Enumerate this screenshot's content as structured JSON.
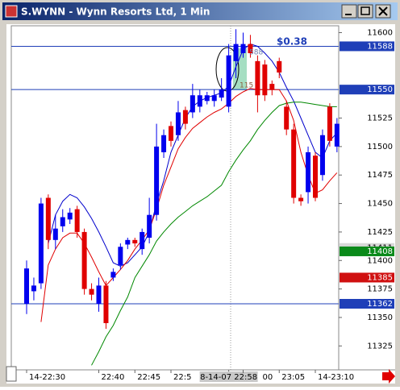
{
  "chart_data": {
    "type": "candlestick",
    "title": "S.WYNN - Wynn Resorts Ltd, 1 Min",
    "categories": [
      "14-22:30",
      null,
      null,
      null,
      null,
      null,
      null,
      null,
      null,
      null,
      "22:40",
      null,
      null,
      null,
      null,
      "22:45",
      null,
      null,
      null,
      null,
      "22:5",
      null,
      null,
      null,
      null,
      null,
      null,
      null,
      "8-14-07 22:58",
      null,
      "00",
      null,
      null,
      null,
      null,
      "23:05",
      null,
      null,
      null,
      null,
      "14-23:10",
      null,
      null,
      null
    ],
    "open": [
      11362,
      11373,
      11380,
      11455,
      11418,
      11430,
      11436,
      11445,
      11425,
      11375,
      11362,
      11378,
      11385,
      11396,
      11414,
      11418,
      11410,
      11420,
      11440,
      11495,
      11518,
      11510,
      11532,
      11530,
      11535,
      11540,
      11540,
      11543,
      11535,
      11575,
      11582,
      11590,
      11575,
      11572,
      11555,
      11575,
      11535,
      11515,
      11455,
      11460,
      11492,
      11475,
      11535,
      11500
    ],
    "high": [
      11400,
      11385,
      11455,
      11458,
      11440,
      11445,
      11446,
      11448,
      11428,
      11380,
      11385,
      11382,
      11393,
      11415,
      11420,
      11420,
      11428,
      11455,
      11520,
      11515,
      11522,
      11540,
      11535,
      11555,
      11550,
      11548,
      11550,
      11560,
      11590,
      11603,
      11600,
      11598,
      11580,
      11576,
      11558,
      11578,
      11540,
      11520,
      11458,
      11500,
      11495,
      11515,
      11538,
      11525
    ],
    "low": [
      11353,
      11365,
      11375,
      11410,
      11410,
      11425,
      11432,
      11420,
      11370,
      11365,
      11355,
      11340,
      11382,
      11392,
      11410,
      11412,
      11405,
      11415,
      11435,
      11490,
      11500,
      11505,
      11515,
      11525,
      11530,
      11537,
      11535,
      11540,
      11530,
      11560,
      11578,
      11578,
      11530,
      11540,
      11545,
      11560,
      11510,
      11450,
      11448,
      11450,
      11452,
      11470,
      11500,
      11495
    ],
    "close": [
      11393,
      11378,
      11450,
      11418,
      11428,
      11438,
      11442,
      11425,
      11375,
      11370,
      11378,
      11345,
      11390,
      11412,
      11418,
      11415,
      11425,
      11440,
      11500,
      11510,
      11505,
      11530,
      11520,
      11545,
      11545,
      11545,
      11545,
      11550,
      11580,
      11590,
      11590,
      11582,
      11545,
      11545,
      11550,
      11565,
      11515,
      11455,
      11452,
      11495,
      11455,
      11510,
      11505,
      11520
    ],
    "up_color": "#0000ee",
    "down_color": "#e00000",
    "series": [
      {
        "color": "#0000cc",
        "values": [
          null,
          null,
          null,
          11415,
          11440,
          11452,
          11458,
          11455,
          11447,
          11437,
          11425,
          11412,
          11398,
          11395,
          11398,
          11405,
          11412,
          11425,
          11450,
          11470,
          11495,
          11510,
          11525,
          11535,
          11540,
          11543,
          11545,
          11547,
          11553,
          11570,
          11585,
          11590,
          11588,
          11582,
          11575,
          11565,
          11552,
          11540,
          11525,
          11510,
          11495,
          11490,
          11505,
          11512
        ]
      },
      {
        "color": "#e00000",
        "values": [
          null,
          null,
          11346,
          11396,
          11410,
          11420,
          11424,
          11424,
          11415,
          11403,
          11390,
          11378,
          11385,
          11392,
          11400,
          11410,
          11418,
          11427,
          11445,
          11466,
          11482,
          11498,
          11508,
          11516,
          11521,
          11526,
          11530,
          11533,
          11538,
          11544,
          11548,
          11551,
          11550,
          11550,
          11550,
          11550,
          11540,
          11523,
          11495,
          11475,
          11459,
          11462,
          11470,
          11477
        ]
      },
      {
        "color": "#008800",
        "values": [
          null,
          null,
          null,
          null,
          null,
          null,
          null,
          null,
          null,
          11308,
          11320,
          11333,
          11343,
          11356,
          11368,
          11385,
          11395,
          11405,
          11417,
          11425,
          11432,
          11438,
          11443,
          11448,
          11452,
          11456,
          11461,
          11466,
          11478,
          11488,
          11497,
          11505,
          11515,
          11523,
          11530,
          11536,
          11538,
          11539,
          11539,
          11538,
          11537,
          11536,
          11535,
          11535
        ]
      }
    ],
    "ylim": [
      11304,
      11606
    ],
    "yticks": [
      11600,
      11525,
      11500,
      11475,
      11450,
      11425,
      11400,
      11375,
      11350,
      11325
    ],
    "levels": [
      {
        "value": 11588,
        "color": "#1f3fb8",
        "text_color": "#ffffff",
        "line": true
      },
      {
        "value": 11550,
        "color": "#1f3fb8",
        "text_color": "#ffffff",
        "line": true
      },
      {
        "value": 11411,
        "color": "#d8d8d8",
        "text_color": "#000000",
        "line": false
      },
      {
        "value": 11408,
        "color": "#0a8a1a",
        "text_color": "#ffffff",
        "line": false
      },
      {
        "value": 11385,
        "color": "#d01010",
        "text_color": "#ffffff",
        "line": false
      },
      {
        "value": 11362,
        "color": "#1f3fb8",
        "text_color": "#ffffff",
        "line": true
      }
    ],
    "annotations": [
      {
        "text": "$0.38"
      },
      {
        "text": "588"
      },
      {
        "text": "115"
      }
    ]
  }
}
